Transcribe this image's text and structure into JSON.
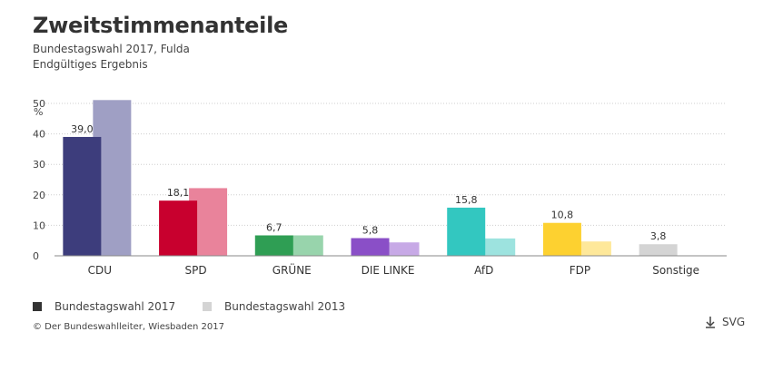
{
  "header": {
    "title": "Zweitstimmenanteile",
    "subtitle": "Bundestagswahl 2017, Fulda",
    "subtitle2": "Endgültiges Ergebnis"
  },
  "chart_data": {
    "type": "bar",
    "ylabel": "%",
    "ylim": [
      0,
      50
    ],
    "yticks": [
      0,
      10,
      20,
      30,
      40,
      50
    ],
    "grid": true,
    "categories": [
      "CDU",
      "SPD",
      "GRÜNE",
      "DIE LINKE",
      "AfD",
      "FDP",
      "Sonstige"
    ],
    "series": [
      {
        "name": "Bundestagswahl 2017",
        "values": [
          39.0,
          18.1,
          6.7,
          5.8,
          15.8,
          10.8,
          3.8
        ],
        "labels": [
          "39,0",
          "18,1",
          "6,7",
          "5,8",
          "15,8",
          "10,8",
          "3,8"
        ],
        "colors": [
          "#3d3d7c",
          "#c8002e",
          "#2f9e54",
          "#8a4fc7",
          "#33c7c0",
          "#fdd130",
          "#d4d4d4"
        ]
      },
      {
        "name": "Bundestagswahl 2013",
        "values": [
          51.1,
          22.2,
          6.7,
          4.4,
          5.7,
          4.7,
          null
        ],
        "colors": [
          "#9f9fc4",
          "#e9839b",
          "#98d4ac",
          "#c7a9e6",
          "#9de3df",
          "#fee89a",
          "#e8e8e8"
        ]
      }
    ]
  },
  "legend": {
    "items": [
      {
        "label": "Bundestagswahl 2017",
        "color": "#333333"
      },
      {
        "label": "Bundestagswahl 2013",
        "color": "#d4d4d4"
      }
    ]
  },
  "footer": {
    "source": "© Der Bundeswahlleiter, Wiesbaden 2017",
    "download_label": "SVG"
  }
}
